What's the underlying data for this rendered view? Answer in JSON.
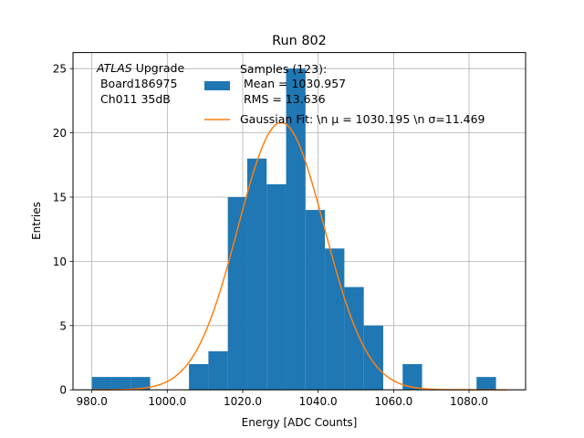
{
  "chart_data": {
    "type": "bar",
    "title": "Run 802",
    "xlabel": "Energy [ADC Counts]",
    "ylabel": "Entries",
    "xlim": [
      975,
      1095
    ],
    "ylim": [
      0,
      26.25
    ],
    "grid": true,
    "x_ticks": [
      980,
      1000,
      1020,
      1040,
      1060,
      1080
    ],
    "x_tick_labels": [
      "980.0",
      "1000.0",
      "1020.0",
      "1040.0",
      "1060.0",
      "1080.0"
    ],
    "y_ticks": [
      0,
      5,
      10,
      15,
      20,
      25
    ],
    "y_tick_labels": [
      "0",
      "5",
      "10",
      "15",
      "20",
      "25"
    ],
    "bin_width": 5.15,
    "bins": [
      {
        "left": 980.0,
        "count": 1
      },
      {
        "left": 985.15,
        "count": 1
      },
      {
        "left": 990.3,
        "count": 1
      },
      {
        "left": 1005.75,
        "count": 2
      },
      {
        "left": 1010.9,
        "count": 3
      },
      {
        "left": 1016.05,
        "count": 15
      },
      {
        "left": 1021.2,
        "count": 18
      },
      {
        "left": 1026.35,
        "count": 16
      },
      {
        "left": 1031.5,
        "count": 25
      },
      {
        "left": 1036.65,
        "count": 14
      },
      {
        "left": 1041.8,
        "count": 11
      },
      {
        "left": 1046.95,
        "count": 8
      },
      {
        "left": 1052.1,
        "count": 5
      },
      {
        "left": 1062.4,
        "count": 2
      },
      {
        "left": 1082.0,
        "count": 1
      }
    ],
    "fit": {
      "mu": 1030.195,
      "sigma": 11.469,
      "amplitude": 20.8,
      "x_range": [
        980,
        1090
      ]
    },
    "series": [
      {
        "name": "Samples",
        "kind": "histogram",
        "color": "#1f77b4"
      },
      {
        "name": "Gaussian Fit",
        "kind": "line",
        "color": "#ff7f0e"
      }
    ],
    "legend": {
      "position": "top-right",
      "hist_lines": [
        "Samples (123):",
        " Mean = 1030.957",
        " RMS = 13.636"
      ],
      "fit_label": "Gaussian Fit: \\n μ = 1030.195 \\n σ=11.469"
    },
    "annotation": {
      "position": "top-left",
      "line1_italic": "ATLAS",
      "line1_rest": " Upgrade",
      "line2": " Board186975",
      "line3": " Ch011 35dB"
    }
  }
}
